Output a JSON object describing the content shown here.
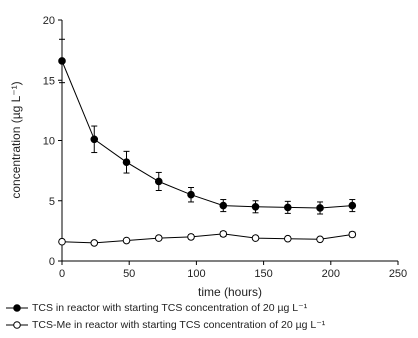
{
  "chart_data": {
    "type": "line",
    "xlabel": "time (hours)",
    "ylabel": "concentration (µg L⁻¹)",
    "xlim": [
      0,
      250
    ],
    "ylim": [
      0,
      20
    ],
    "xticks": [
      "0",
      "50",
      "100",
      "150",
      "200",
      "250"
    ],
    "yticks": [
      "0",
      "5",
      "10",
      "15",
      "20"
    ],
    "grid": false,
    "legend_position": "bottom",
    "series": [
      {
        "name": "TCS in reactor with starting TCS concentration of 20 µg L⁻¹",
        "marker": "filled-circle",
        "color": "#000000",
        "x": [
          0,
          24,
          48,
          72,
          96,
          120,
          144,
          168,
          192,
          216
        ],
        "y": [
          16.6,
          10.1,
          8.2,
          6.6,
          5.5,
          4.6,
          4.5,
          4.45,
          4.4,
          4.6
        ],
        "err": [
          1.8,
          1.1,
          0.9,
          0.75,
          0.6,
          0.5,
          0.5,
          0.5,
          0.5,
          0.5
        ]
      },
      {
        "name": "TCS-Me in reactor with starting TCS concentration of 20 µg L⁻¹",
        "marker": "open-circle",
        "color": "#000000",
        "x": [
          0,
          24,
          48,
          72,
          96,
          120,
          144,
          168,
          192,
          216
        ],
        "y": [
          1.6,
          1.5,
          1.7,
          1.9,
          2.0,
          2.25,
          1.9,
          1.85,
          1.8,
          2.2
        ],
        "err": [
          0.1,
          0.1,
          0.12,
          0.15,
          0.18,
          0.2,
          0.15,
          0.12,
          0.12,
          0.2
        ]
      }
    ]
  }
}
